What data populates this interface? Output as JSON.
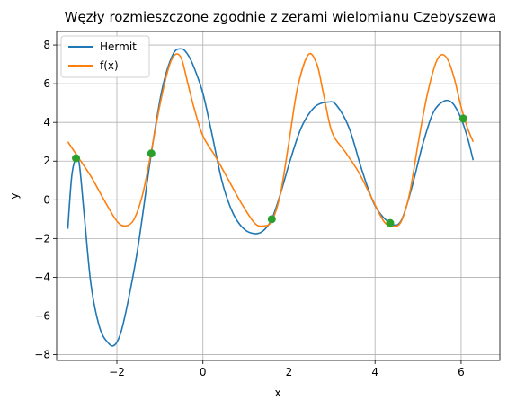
{
  "chart_data": {
    "type": "line",
    "title": "Węzły rozmieszczone zgodnie z zerami wielomianu Czebyszewa",
    "xlabel": "x",
    "ylabel": "y",
    "xlim": [
      -3.4,
      6.9
    ],
    "ylim": [
      -8.3,
      8.7
    ],
    "xticks": [
      -2,
      0,
      2,
      4,
      6
    ],
    "yticks": [
      -8,
      -6,
      -4,
      -2,
      0,
      2,
      4,
      6,
      8
    ],
    "xtick_labels": [
      "−2",
      "0",
      "2",
      "4",
      "6"
    ],
    "ytick_labels": [
      "−8",
      "−6",
      "−4",
      "−2",
      "0",
      "2",
      "4",
      "6",
      "8"
    ],
    "grid": true,
    "legend_position": "top-left",
    "series": [
      {
        "name": "Hermit",
        "color": "#1f77b4",
        "x": [
          -3.14,
          -3.05,
          -2.95,
          -2.87,
          -2.75,
          -2.6,
          -2.4,
          -2.2,
          -2.05,
          -1.9,
          -1.7,
          -1.5,
          -1.2,
          -0.95,
          -0.7,
          -0.5,
          -0.35,
          -0.2,
          0.0,
          0.2,
          0.45,
          0.7,
          0.95,
          1.2,
          1.4,
          1.6,
          1.8,
          2.05,
          2.3,
          2.6,
          2.9,
          3.1,
          3.4,
          3.7,
          4.0,
          4.35,
          4.6,
          4.85,
          5.1,
          5.35,
          5.6,
          5.8,
          6.0,
          6.15,
          6.28
        ],
        "y": [
          -1.5,
          1.2,
          2.15,
          1.8,
          -1.0,
          -4.4,
          -6.6,
          -7.4,
          -7.5,
          -6.8,
          -4.8,
          -2.3,
          2.4,
          5.7,
          7.5,
          7.8,
          7.5,
          6.8,
          5.5,
          3.5,
          0.9,
          -0.7,
          -1.5,
          -1.75,
          -1.6,
          -1.0,
          0.3,
          2.2,
          3.8,
          4.8,
          5.05,
          4.9,
          3.7,
          1.5,
          -0.3,
          -1.2,
          -1.1,
          0.6,
          2.8,
          4.5,
          5.1,
          5.0,
          4.2,
          3.2,
          2.05
        ]
      },
      {
        "name": "f(x)",
        "color": "#ff7f0e",
        "x": [
          -3.14,
          -2.9,
          -2.6,
          -2.3,
          -2.0,
          -1.8,
          -1.6,
          -1.4,
          -1.2,
          -1.0,
          -0.8,
          -0.65,
          -0.5,
          -0.35,
          -0.2,
          0.0,
          0.3,
          0.6,
          0.9,
          1.2,
          1.4,
          1.6,
          1.8,
          2.0,
          2.2,
          2.45,
          2.65,
          2.8,
          3.0,
          3.3,
          3.6,
          3.9,
          4.2,
          4.4,
          4.6,
          4.8,
          5.0,
          5.2,
          5.4,
          5.55,
          5.7,
          5.85,
          6.0,
          6.15,
          6.28
        ],
        "y": [
          3.0,
          2.2,
          1.2,
          0.0,
          -1.1,
          -1.35,
          -1.0,
          0.3,
          2.5,
          4.9,
          6.8,
          7.5,
          7.3,
          6.0,
          4.7,
          3.3,
          2.2,
          1.0,
          -0.2,
          -1.2,
          -1.35,
          -1.1,
          0.3,
          3.0,
          5.8,
          7.5,
          7.0,
          5.5,
          3.5,
          2.5,
          1.5,
          0.2,
          -1.1,
          -1.35,
          -1.15,
          0.3,
          2.9,
          5.3,
          7.0,
          7.5,
          7.2,
          6.2,
          4.8,
          3.7,
          3.0
        ]
      }
    ],
    "nodes": {
      "color": "#2ca02c",
      "x": [
        -2.95,
        -1.2,
        1.6,
        4.35,
        6.05
      ],
      "y": [
        2.15,
        2.4,
        -1.0,
        -1.2,
        4.2
      ]
    }
  }
}
